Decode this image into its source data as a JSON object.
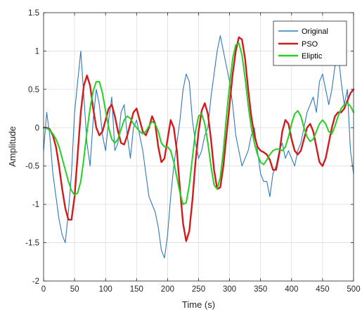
{
  "chart_data": {
    "type": "line",
    "title": "",
    "xlabel": "Time (s)",
    "ylabel": "Amplitude",
    "xlim": [
      0,
      500
    ],
    "ylim": [
      -2,
      1.5
    ],
    "xticks": [
      0,
      50,
      100,
      150,
      200,
      250,
      300,
      350,
      400,
      450,
      500
    ],
    "yticks": [
      -2,
      -1.5,
      -1,
      -0.5,
      0,
      0.5,
      1,
      1.5
    ],
    "xtick_labels": [
      "0",
      "50",
      "100",
      "150",
      "200",
      "250",
      "300",
      "350",
      "400",
      "450",
      "500"
    ],
    "ytick_labels": [
      "-2",
      "-1.5",
      "-1",
      "-0.5",
      "0",
      "0.5",
      "1",
      "1.5"
    ],
    "grid": true,
    "legend_position": "top-right",
    "series": [
      {
        "name": "Original",
        "color": "#2f79bb",
        "x": [
          0,
          5,
          10,
          15,
          20,
          25,
          30,
          35,
          40,
          45,
          50,
          55,
          60,
          65,
          70,
          75,
          80,
          85,
          90,
          95,
          100,
          105,
          110,
          115,
          120,
          125,
          130,
          135,
          140,
          145,
          150,
          155,
          160,
          165,
          170,
          175,
          180,
          185,
          190,
          195,
          200,
          205,
          210,
          215,
          220,
          225,
          230,
          235,
          240,
          245,
          250,
          255,
          260,
          265,
          270,
          275,
          280,
          285,
          290,
          295,
          300,
          305,
          310,
          315,
          320,
          325,
          330,
          335,
          340,
          345,
          350,
          355,
          360,
          365,
          370,
          375,
          380,
          385,
          390,
          395,
          400,
          405,
          410,
          415,
          420,
          425,
          430,
          435,
          440,
          445,
          450,
          455,
          460,
          465,
          470,
          475,
          480,
          485,
          490,
          495,
          500
        ],
        "y": [
          -0.3,
          0.2,
          -0.1,
          -0.6,
          -0.9,
          -1.2,
          -1.4,
          -1.5,
          -1.1,
          -0.6,
          0.2,
          0.6,
          1.0,
          0.4,
          -0.2,
          -0.5,
          0.1,
          0.5,
          0.3,
          -0.1,
          -0.3,
          0.1,
          0.4,
          -0.3,
          -0.2,
          0.2,
          0.3,
          -0.1,
          -0.4,
          0.0,
          0.1,
          -0.1,
          -0.3,
          -0.6,
          -0.9,
          -1.0,
          -1.1,
          -1.3,
          -1.6,
          -1.7,
          -1.4,
          -0.9,
          -0.5,
          -0.2,
          0.1,
          0.5,
          0.7,
          0.6,
          0.1,
          -0.2,
          -0.4,
          -0.3,
          -0.1,
          0.0,
          0.4,
          0.7,
          1.0,
          1.2,
          1.0,
          0.8,
          0.6,
          0.3,
          -0.1,
          -0.3,
          -0.5,
          -0.4,
          -0.3,
          -0.1,
          0.0,
          -0.3,
          -0.6,
          -0.7,
          -0.7,
          -0.9,
          -0.6,
          -0.5,
          -0.3,
          -0.2,
          -0.4,
          -0.3,
          -0.4,
          -0.5,
          -0.3,
          -0.2,
          0.0,
          0.2,
          0.3,
          0.4,
          0.2,
          0.6,
          0.7,
          0.5,
          0.3,
          0.5,
          0.8,
          1.0,
          0.6,
          0.3,
          0.5,
          -0.3,
          -0.6
        ]
      },
      {
        "name": "PSO",
        "color": "#d01c1c",
        "x": [
          0,
          5,
          10,
          15,
          20,
          25,
          30,
          35,
          40,
          45,
          50,
          55,
          60,
          65,
          70,
          75,
          80,
          85,
          90,
          95,
          100,
          105,
          110,
          115,
          120,
          125,
          130,
          135,
          140,
          145,
          150,
          155,
          160,
          165,
          170,
          175,
          180,
          185,
          190,
          195,
          200,
          205,
          210,
          215,
          220,
          225,
          230,
          235,
          240,
          245,
          250,
          255,
          260,
          265,
          270,
          275,
          280,
          285,
          290,
          295,
          300,
          305,
          310,
          315,
          320,
          325,
          330,
          335,
          340,
          345,
          350,
          355,
          360,
          365,
          370,
          375,
          380,
          385,
          390,
          395,
          400,
          405,
          410,
          415,
          420,
          425,
          430,
          435,
          440,
          445,
          450,
          455,
          460,
          465,
          470,
          475,
          480,
          485,
          490,
          495,
          500
        ],
        "y": [
          0.0,
          0.0,
          -0.02,
          -0.1,
          -0.25,
          -0.5,
          -0.8,
          -1.05,
          -1.2,
          -1.2,
          -0.9,
          -0.35,
          0.2,
          0.55,
          0.68,
          0.55,
          0.25,
          0.0,
          -0.1,
          -0.05,
          0.1,
          0.25,
          0.3,
          0.15,
          -0.05,
          -0.2,
          -0.22,
          -0.1,
          0.05,
          0.2,
          0.25,
          0.1,
          -0.05,
          -0.1,
          0.0,
          0.15,
          0.05,
          -0.25,
          -0.45,
          -0.4,
          -0.15,
          0.1,
          0.0,
          -0.3,
          -0.8,
          -1.25,
          -1.48,
          -1.35,
          -0.95,
          -0.45,
          -0.05,
          0.22,
          0.32,
          0.18,
          -0.15,
          -0.55,
          -0.8,
          -0.78,
          -0.5,
          -0.1,
          0.3,
          0.7,
          1.0,
          1.18,
          1.15,
          0.9,
          0.5,
          0.15,
          -0.1,
          -0.25,
          -0.3,
          -0.32,
          -0.35,
          -0.42,
          -0.55,
          -0.55,
          -0.35,
          -0.05,
          0.1,
          0.05,
          -0.15,
          -0.3,
          -0.35,
          -0.3,
          -0.15,
          0.0,
          0.05,
          -0.05,
          -0.25,
          -0.45,
          -0.5,
          -0.4,
          -0.2,
          0.0,
          0.15,
          0.2,
          0.2,
          0.25,
          0.35,
          0.45,
          0.5
        ]
      },
      {
        "name": "Eliptic",
        "color": "#24d024",
        "x": [
          0,
          5,
          10,
          15,
          20,
          25,
          30,
          35,
          40,
          45,
          50,
          55,
          60,
          65,
          70,
          75,
          80,
          85,
          90,
          95,
          100,
          105,
          110,
          115,
          120,
          125,
          130,
          135,
          140,
          145,
          150,
          155,
          160,
          165,
          170,
          175,
          180,
          185,
          190,
          195,
          200,
          205,
          210,
          215,
          220,
          225,
          230,
          235,
          240,
          245,
          250,
          255,
          260,
          265,
          270,
          275,
          280,
          285,
          290,
          295,
          300,
          305,
          310,
          315,
          320,
          325,
          330,
          335,
          340,
          345,
          350,
          355,
          360,
          365,
          370,
          375,
          380,
          385,
          390,
          395,
          400,
          405,
          410,
          415,
          420,
          425,
          430,
          435,
          440,
          445,
          450,
          455,
          460,
          465,
          470,
          475,
          480,
          485,
          490,
          495,
          500
        ],
        "y": [
          0.0,
          -0.01,
          -0.03,
          -0.08,
          -0.15,
          -0.25,
          -0.4,
          -0.55,
          -0.7,
          -0.82,
          -0.88,
          -0.85,
          -0.7,
          -0.4,
          -0.05,
          0.25,
          0.48,
          0.6,
          0.6,
          0.45,
          0.22,
          0.0,
          -0.15,
          -0.2,
          -0.15,
          -0.02,
          0.1,
          0.15,
          0.12,
          0.05,
          0.0,
          -0.05,
          -0.08,
          -0.05,
          0.02,
          0.08,
          0.05,
          -0.05,
          -0.2,
          -0.25,
          -0.25,
          -0.3,
          -0.45,
          -0.65,
          -0.85,
          -1.0,
          -0.98,
          -0.75,
          -0.4,
          -0.05,
          0.15,
          0.18,
          0.05,
          -0.2,
          -0.5,
          -0.75,
          -0.8,
          -0.65,
          -0.3,
          0.15,
          0.55,
          0.9,
          1.08,
          1.1,
          0.95,
          0.65,
          0.3,
          0.0,
          -0.2,
          -0.35,
          -0.45,
          -0.48,
          -0.42,
          -0.35,
          -0.3,
          -0.28,
          -0.28,
          -0.3,
          -0.25,
          -0.12,
          0.05,
          0.18,
          0.22,
          0.15,
          0.0,
          -0.12,
          -0.18,
          -0.15,
          -0.05,
          0.05,
          0.1,
          0.05,
          -0.05,
          -0.08,
          0.02,
          0.15,
          0.25,
          0.3,
          0.32,
          0.28,
          0.2
        ]
      }
    ]
  },
  "colors": {
    "grid": "#dcdcdc",
    "axis": "#262626",
    "background": "#ffffff"
  }
}
